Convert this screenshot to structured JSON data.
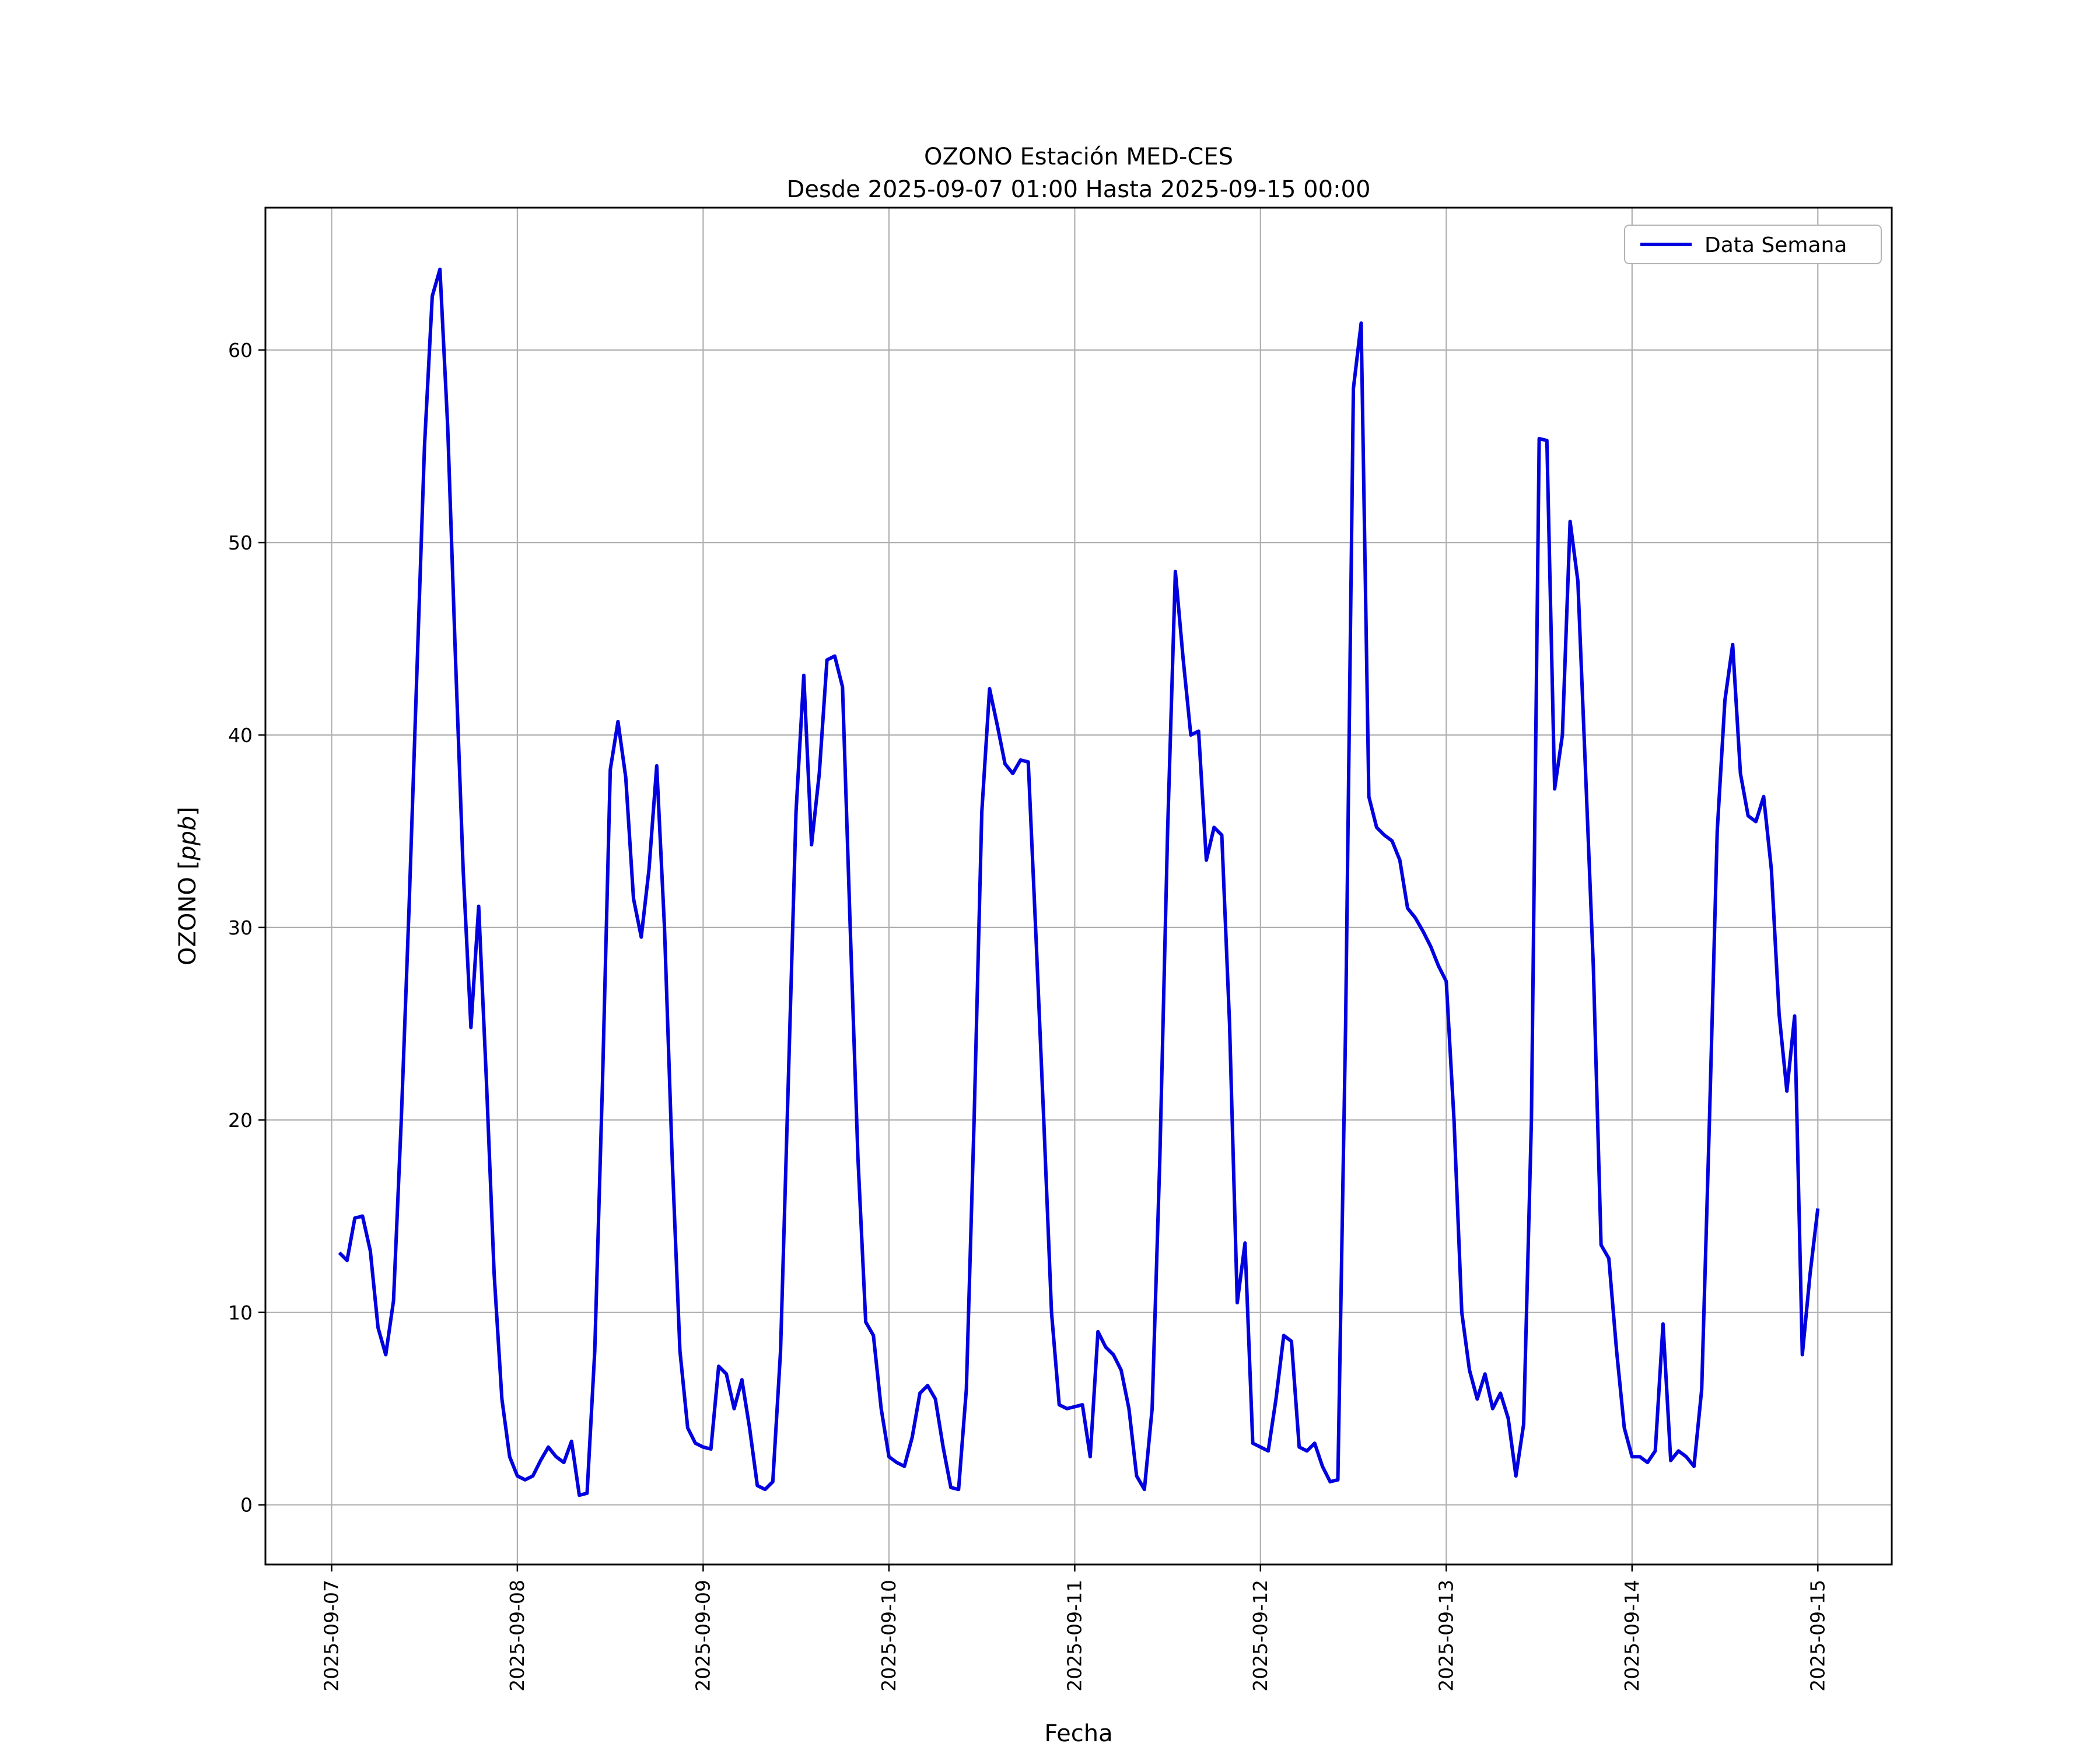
{
  "figure": {
    "title": "OZONO Estación MED-CES",
    "subtitle": "Desde 2025-09-07 01:00 Hasta 2025-09-15 00:00"
  },
  "axes": {
    "xlabel": "Fecha",
    "ylabel_prefix": "OZONO [",
    "ylabel_math": "ppb",
    "ylabel_suffix": "]"
  },
  "legend": {
    "label": "Data Semana",
    "position": "upper right"
  },
  "colors": {
    "line": "#0000e0",
    "grid": "#b0b0b0",
    "spine": "#000000",
    "text": "#000000",
    "legend_border": "#b3b3b3",
    "background": "#ffffff"
  },
  "chart_data": {
    "type": "line",
    "title": "OZONO Estación MED-CES",
    "subtitle": "Desde 2025-09-07 01:00 Hasta 2025-09-15 00:00",
    "xlabel": "Fecha",
    "ylabel": "OZONO [ppb]",
    "x_start": "2025-09-07 01:00",
    "x_end": "2025-09-15 00:00",
    "x_interval_hours": 1,
    "grid": true,
    "legend_position": "upper right",
    "ylim": [
      -3.1,
      67.4
    ],
    "y_ticks": [
      0,
      10,
      20,
      30,
      40,
      50,
      60
    ],
    "x_tick_labels": [
      "2025-09-07",
      "2025-09-08",
      "2025-09-09",
      "2025-09-10",
      "2025-09-11",
      "2025-09-12",
      "2025-09-13",
      "2025-09-14",
      "2025-09-15"
    ],
    "x_tick_hours": [
      -1,
      23,
      47,
      71,
      95,
      119,
      143,
      167,
      191
    ],
    "series": [
      {
        "name": "Data Semana",
        "color": "#0000e0",
        "values": [
          13.1,
          12.7,
          14.9,
          15.0,
          13.2,
          9.2,
          7.8,
          10.6,
          20.0,
          31.0,
          43.0,
          55.0,
          62.8,
          64.2,
          56.0,
          44.0,
          33.0,
          24.8,
          31.1,
          22.0,
          12.0,
          5.5,
          2.5,
          1.5,
          1.3,
          1.5,
          2.3,
          3.0,
          2.5,
          2.2,
          3.3,
          0.5,
          0.6,
          8.0,
          22.0,
          38.2,
          40.7,
          37.8,
          31.5,
          29.5,
          33.0,
          38.4,
          30.0,
          18.0,
          8.0,
          4.0,
          3.2,
          3.0,
          2.9,
          7.2,
          6.8,
          5.0,
          6.5,
          4.0,
          1.0,
          0.8,
          1.2,
          8.0,
          22.0,
          36.0,
          43.1,
          34.3,
          38.0,
          43.9,
          44.1,
          42.5,
          30.0,
          18.0,
          9.5,
          8.8,
          5.0,
          2.5,
          2.2,
          2.0,
          3.5,
          5.8,
          6.2,
          5.5,
          3.0,
          0.9,
          0.8,
          6.0,
          20.0,
          36.0,
          42.4,
          40.5,
          38.5,
          38.0,
          38.7,
          38.6,
          29.5,
          20.0,
          10.0,
          5.2,
          5.0,
          5.1,
          5.2,
          2.5,
          9.0,
          8.2,
          7.8,
          7.0,
          5.0,
          1.5,
          0.8,
          5.0,
          18.0,
          35.0,
          48.5,
          44.0,
          40.0,
          40.2,
          33.5,
          35.2,
          34.8,
          25.0,
          10.5,
          13.6,
          3.2,
          3.0,
          2.8,
          5.5,
          8.8,
          8.5,
          3.0,
          2.8,
          3.2,
          2.0,
          1.2,
          1.3,
          25.0,
          58.0,
          61.4,
          36.8,
          35.2,
          34.8,
          34.5,
          33.5,
          31.0,
          30.5,
          29.8,
          29.0,
          28.0,
          27.2,
          20.0,
          10.0,
          7.0,
          5.5,
          6.8,
          5.0,
          5.8,
          4.5,
          1.5,
          4.2,
          20.0,
          55.4,
          55.3,
          37.2,
          40.0,
          51.1,
          48.0,
          38.0,
          28.0,
          13.5,
          12.8,
          8.0,
          4.0,
          2.5,
          2.5,
          2.2,
          2.8,
          9.4,
          2.3,
          2.8,
          2.5,
          2.0,
          6.0,
          20.0,
          35.0,
          41.8,
          44.7,
          38.0,
          35.8,
          35.5,
          36.8,
          33.0,
          25.5,
          21.5,
          25.4,
          7.8,
          12.0,
          15.4
        ]
      }
    ]
  }
}
